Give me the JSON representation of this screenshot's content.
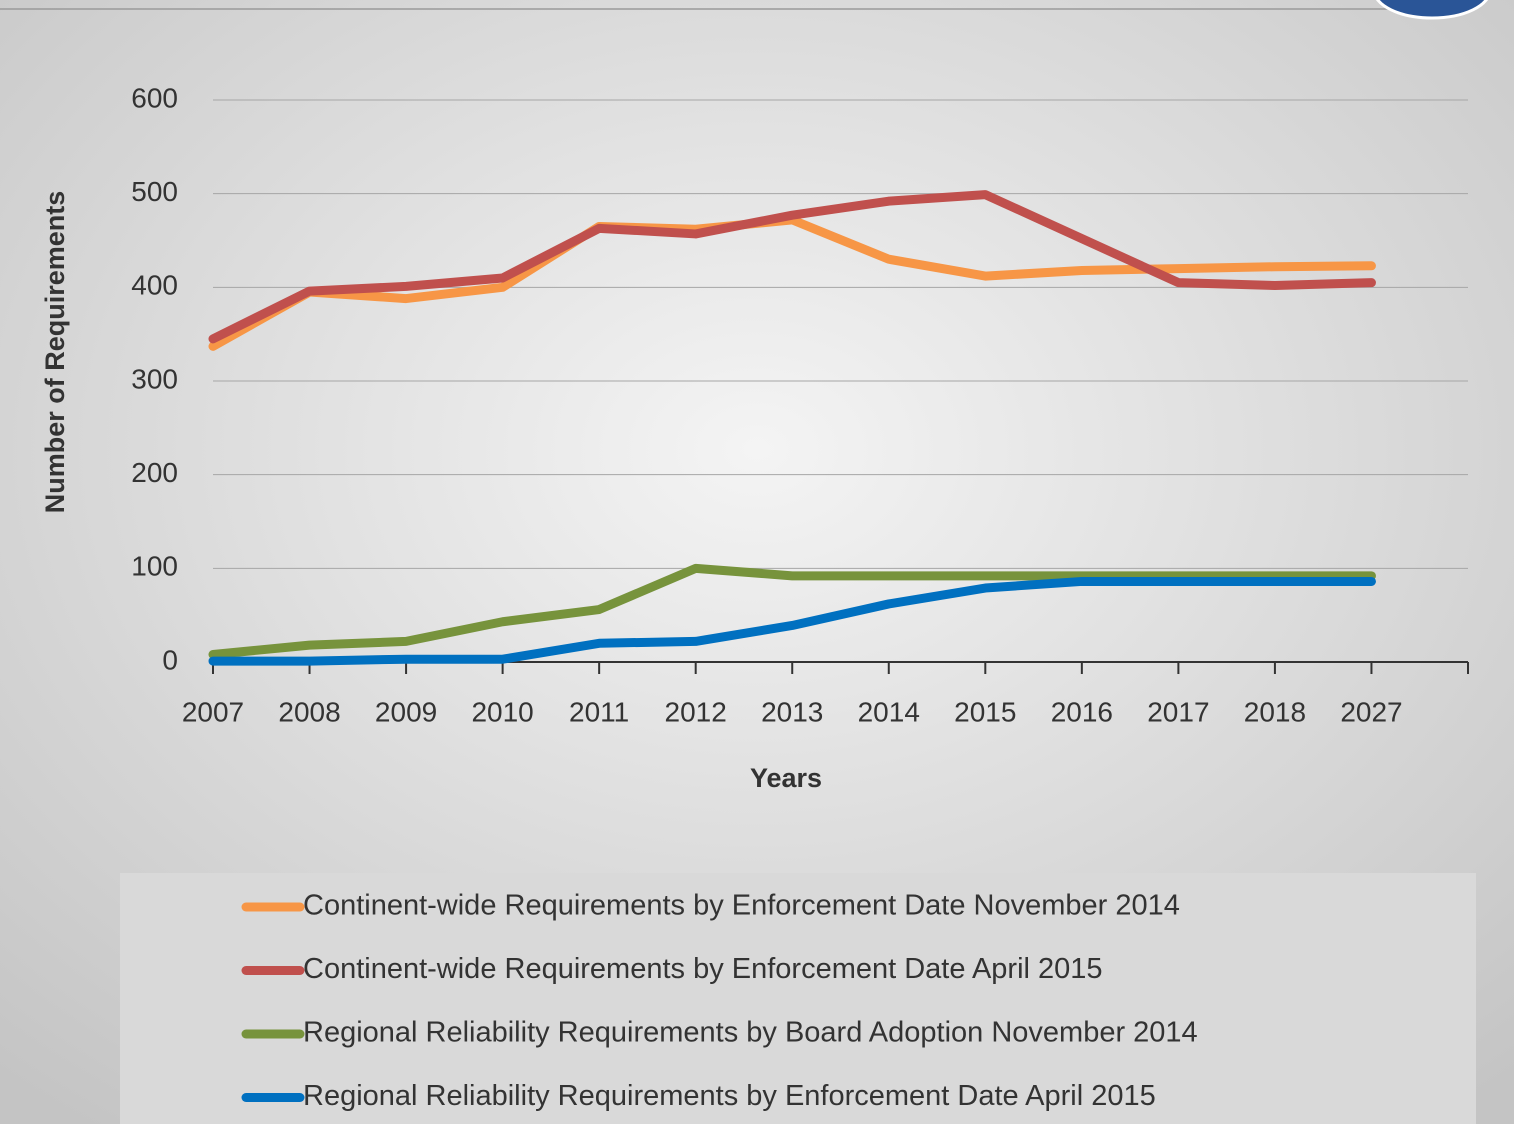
{
  "chart_data": {
    "type": "line",
    "x_label": "Years",
    "y_label": "Number of Requirements",
    "categories": [
      "2007",
      "2008",
      "2009",
      "2010",
      "2011",
      "2012",
      "2013",
      "2014",
      "2015",
      "2016",
      "2017",
      "2018",
      "2027"
    ],
    "series": [
      {
        "name": "Continent-wide Requirements by Enforcement Date November 2014",
        "color": "#f79646",
        "values": [
          337,
          395,
          388,
          400,
          465,
          462,
          472,
          430,
          412,
          418,
          420,
          422,
          423
        ]
      },
      {
        "name": "Continent-wide Requirements by Enforcement Date April 2015",
        "color": "#c0504d",
        "values": [
          345,
          396,
          401,
          410,
          463,
          457,
          477,
          492,
          499,
          452,
          405,
          402,
          405
        ]
      },
      {
        "name": "Regional Reliability Requirements by Board Adoption November 2014",
        "color": "#77933c",
        "values": [
          8,
          18,
          22,
          43,
          56,
          100,
          92,
          92,
          92,
          92,
          92,
          92,
          92
        ]
      },
      {
        "name": "Regional Reliability Requirements by Enforcement Date April 2015",
        "color": "#0070c0",
        "values": [
          1,
          1,
          3,
          3,
          20,
          22,
          39,
          62,
          79,
          86,
          86,
          86,
          86
        ]
      }
    ],
    "ylim": [
      0,
      600
    ],
    "yticks": [
      0,
      100,
      200,
      300,
      400,
      500,
      600
    ],
    "grid": true,
    "legend": "bottom"
  }
}
